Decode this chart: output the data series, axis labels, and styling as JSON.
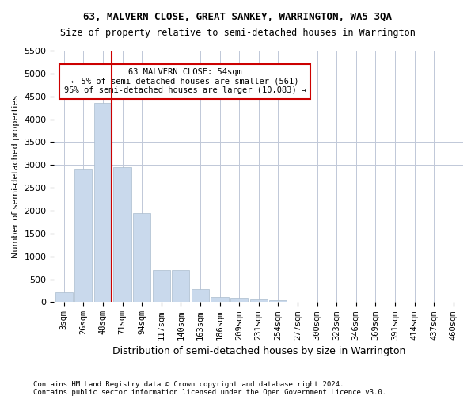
{
  "title1": "63, MALVERN CLOSE, GREAT SANKEY, WARRINGTON, WA5 3QA",
  "title2": "Size of property relative to semi-detached houses in Warrington",
  "xlabel": "Distribution of semi-detached houses by size in Warrington",
  "ylabel": "Number of semi-detached properties",
  "footnote1": "Contains HM Land Registry data © Crown copyright and database right 2024.",
  "footnote2": "Contains public sector information licensed under the Open Government Licence v3.0.",
  "annotation_line1": "63 MALVERN CLOSE: 54sqm",
  "annotation_line2": "← 5% of semi-detached houses are smaller (561)",
  "annotation_line3": "95% of semi-detached houses are larger (10,083) →",
  "bar_color": "#c9d9ec",
  "bar_edge_color": "#aabcce",
  "vline_color": "#cc0000",
  "annotation_box_edge": "#cc0000",
  "background_color": "#ffffff",
  "grid_color": "#c0c8d8",
  "categories": [
    "3sqm",
    "26sqm",
    "48sqm",
    "71sqm",
    "94sqm",
    "117sqm",
    "140sqm",
    "163sqm",
    "186sqm",
    "209sqm",
    "231sqm",
    "254sqm",
    "277sqm",
    "300sqm",
    "323sqm",
    "346sqm",
    "369sqm",
    "391sqm",
    "414sqm",
    "437sqm",
    "460sqm"
  ],
  "values": [
    220,
    2900,
    4350,
    2950,
    1950,
    700,
    700,
    280,
    120,
    90,
    55,
    50,
    0,
    0,
    0,
    0,
    0,
    0,
    0,
    0,
    0
  ],
  "vline_x": 2,
  "ylim": [
    0,
    5500
  ],
  "yticks": [
    0,
    500,
    1000,
    1500,
    2000,
    2500,
    3000,
    3500,
    4000,
    4500,
    5000,
    5500
  ]
}
